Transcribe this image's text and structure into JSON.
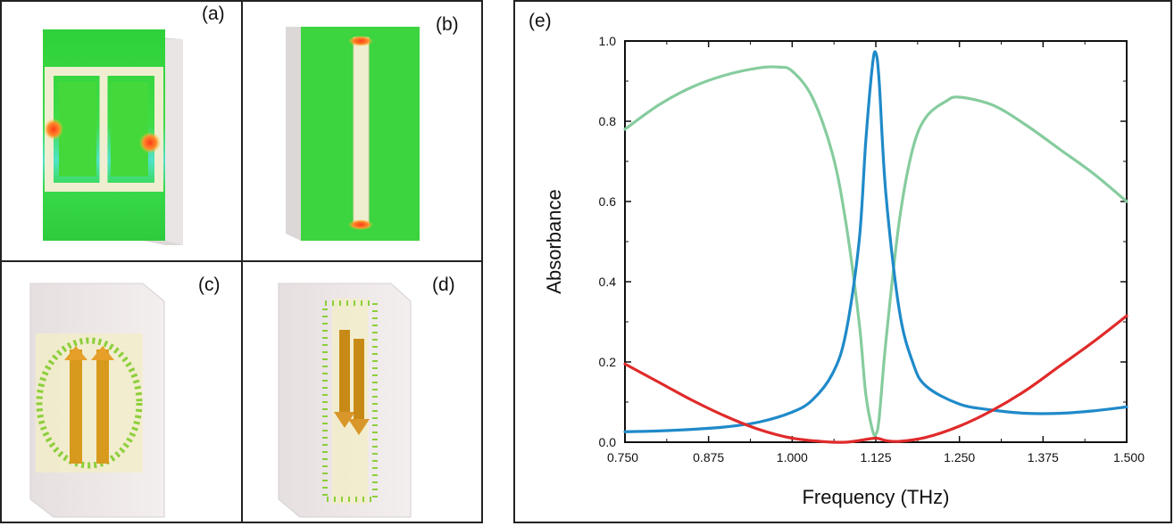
{
  "panels": {
    "a": {
      "label": "(a)"
    },
    "b": {
      "label": "(b)"
    },
    "c": {
      "label": "(c)"
    },
    "d": {
      "label": "(d)"
    },
    "e": {
      "label": "(e)"
    }
  },
  "chart_data": {
    "type": "line",
    "title": "",
    "xlabel": "Frequency (THz)",
    "ylabel": "Absorbance",
    "xlim": [
      0.75,
      1.5
    ],
    "ylim": [
      0.0,
      1.0
    ],
    "xticks": [
      0.75,
      0.875,
      1.0,
      1.125,
      1.25,
      1.375,
      1.5
    ],
    "xtick_labels": [
      "0.750",
      "0.875",
      "1.000",
      "1.125",
      "1.250",
      "1.375",
      "1.500"
    ],
    "yticks": [
      0.0,
      0.2,
      0.4,
      0.6,
      0.8,
      1.0
    ],
    "ytick_labels": [
      "0.0",
      "0.2",
      "0.4",
      "0.6",
      "0.8",
      "1.0"
    ],
    "series": [
      {
        "name": "green",
        "color": "#86cc9e",
        "x": [
          0.75,
          0.8,
          0.85,
          0.9,
          0.95,
          0.98,
          1.0,
          1.03,
          1.06,
          1.08,
          1.1,
          1.11,
          1.12,
          1.125,
          1.13,
          1.14,
          1.16,
          1.18,
          1.2,
          1.23,
          1.25,
          1.3,
          1.35,
          1.4,
          1.45,
          1.5
        ],
        "values": [
          0.78,
          0.84,
          0.885,
          0.915,
          0.933,
          0.935,
          0.925,
          0.86,
          0.72,
          0.55,
          0.3,
          0.12,
          0.03,
          0.02,
          0.06,
          0.25,
          0.55,
          0.73,
          0.81,
          0.85,
          0.86,
          0.84,
          0.79,
          0.73,
          0.67,
          0.6
        ]
      },
      {
        "name": "blue",
        "color": "#1f8ac9",
        "x": [
          0.75,
          0.8,
          0.85,
          0.9,
          0.95,
          1.0,
          1.03,
          1.06,
          1.08,
          1.1,
          1.11,
          1.12,
          1.125,
          1.13,
          1.14,
          1.16,
          1.18,
          1.2,
          1.25,
          1.3,
          1.35,
          1.4,
          1.45,
          1.5
        ],
        "values": [
          0.026,
          0.028,
          0.032,
          0.038,
          0.05,
          0.075,
          0.105,
          0.17,
          0.27,
          0.5,
          0.75,
          0.94,
          0.97,
          0.9,
          0.62,
          0.33,
          0.2,
          0.14,
          0.095,
          0.08,
          0.072,
          0.072,
          0.078,
          0.088
        ]
      },
      {
        "name": "red",
        "color": "#e02a2a",
        "x": [
          0.75,
          0.8,
          0.85,
          0.9,
          0.95,
          1.0,
          1.05,
          1.08,
          1.1,
          1.125,
          1.14,
          1.16,
          1.2,
          1.25,
          1.3,
          1.35,
          1.4,
          1.45,
          1.5
        ],
        "values": [
          0.195,
          0.15,
          0.105,
          0.065,
          0.032,
          0.01,
          0.001,
          0.0,
          0.004,
          0.01,
          0.004,
          0.002,
          0.012,
          0.04,
          0.08,
          0.13,
          0.19,
          0.25,
          0.315
        ]
      }
    ]
  }
}
